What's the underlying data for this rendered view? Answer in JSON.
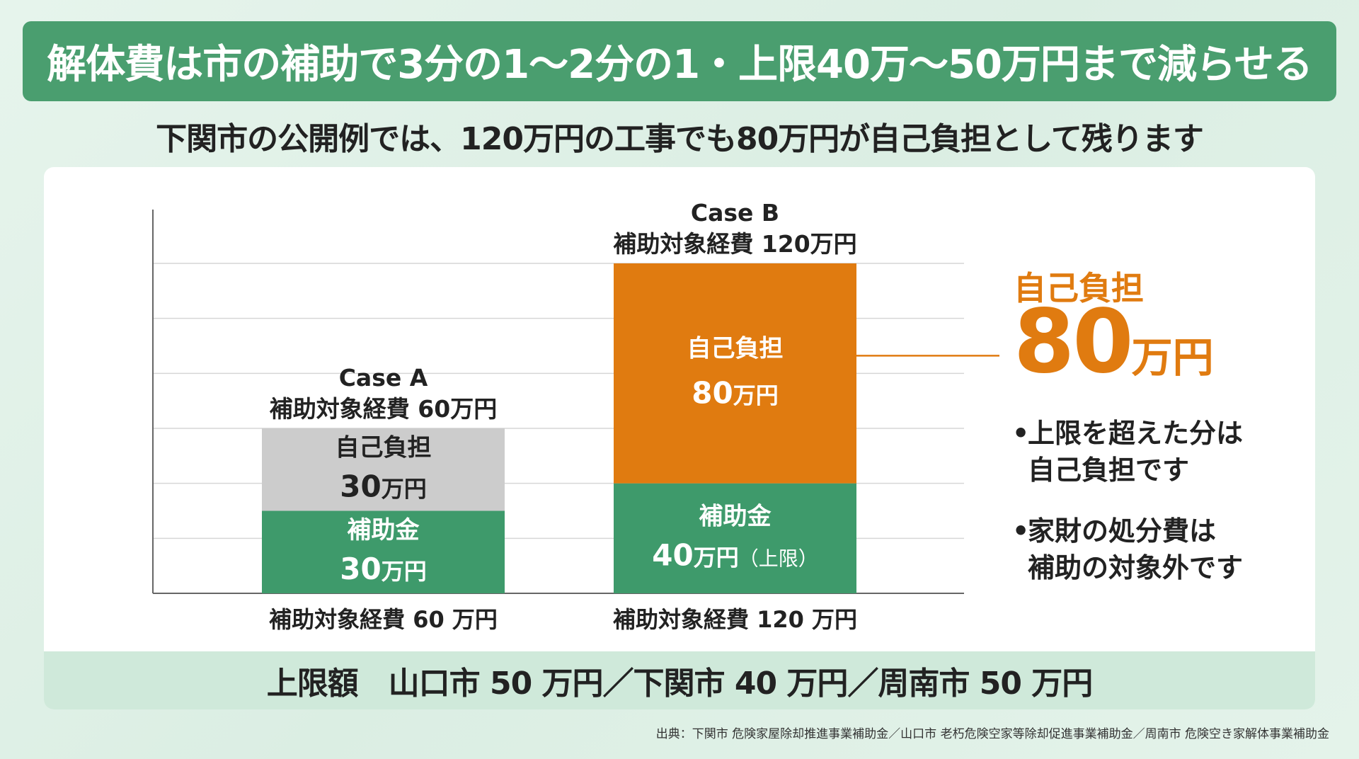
{
  "title": "解体費は市の補助で3分の1〜2分の1・上限40万〜50万円まで減らせる",
  "subtitle": "下関市の公開例では、120万円の工事でも80万円が自己負担として残ります",
  "colors": {
    "banner": "#4a9e6f",
    "subsidy": "#3e9a6b",
    "self_a": "#cccccc",
    "self_b": "#e07b10",
    "grid": "#d6d6d6"
  },
  "chart_data": {
    "type": "bar",
    "stacked": true,
    "unit": "万円",
    "categories": [
      "補助対象経費 60 万円",
      "補助対象経費 120 万円"
    ],
    "bars": [
      {
        "case_label": "Case A",
        "top_label": "補助対象経費 60万円",
        "total": 60,
        "segments": [
          {
            "name": "補助金",
            "value": 30,
            "value_text": "30",
            "unit": "万円",
            "extra": ""
          },
          {
            "name": "自己負担",
            "value": 30,
            "value_text": "30",
            "unit": "万円",
            "extra": ""
          }
        ]
      },
      {
        "case_label": "Case B",
        "top_label": "補助対象経費 120万円",
        "total": 120,
        "segments": [
          {
            "name": "補助金",
            "value": 40,
            "value_text": "40",
            "unit": "万円",
            "extra": "（上限）"
          },
          {
            "name": "自己負担",
            "value": 80,
            "value_text": "80",
            "unit": "万円",
            "extra": ""
          }
        ]
      }
    ],
    "ylim": [
      0,
      120
    ],
    "grid_step": 20,
    "grid": true
  },
  "callout": {
    "label": "自己負担",
    "number": "80",
    "unit": "万円"
  },
  "notes": [
    {
      "line1": "上限を超えた分は",
      "line2": "自己負担です"
    },
    {
      "line1": "家財の処分費は",
      "line2": "補助の対象外です"
    }
  ],
  "bullet": "•",
  "bottom_bar": "上限額　山口市 50 万円／下関市 40 万円／周南市 50 万円",
  "source": "出典：下関市 危険家屋除却推進事業補助金／山口市 老朽危険空家等除却促進事業補助金／周南市 危険空き家解体事業補助金"
}
